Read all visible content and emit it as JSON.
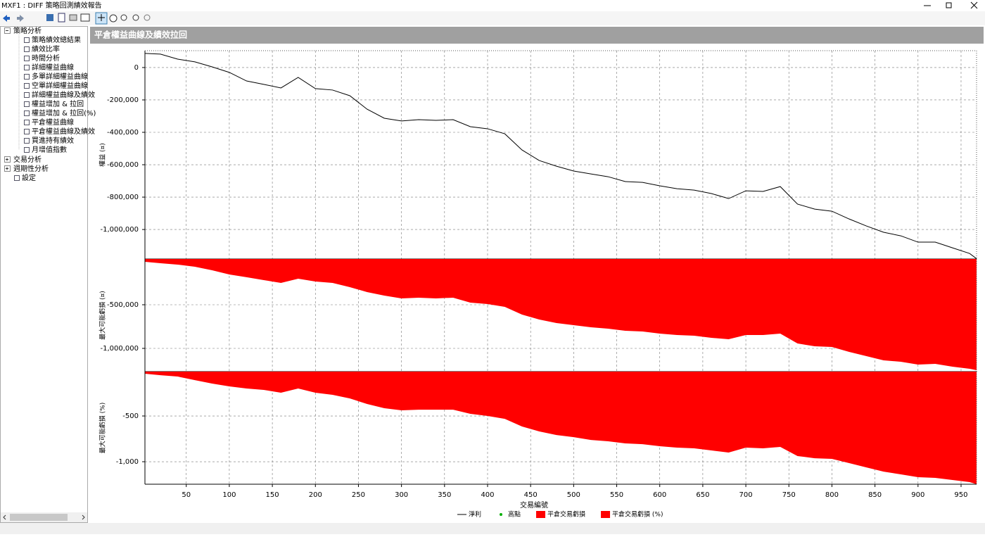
{
  "window": {
    "title": "MXF1 : DIFF 策略回測績效報告",
    "panel_title": "平倉權益曲線及績效拉回"
  },
  "tree": {
    "root": "策略分析",
    "children": [
      "策略績效總結果",
      "績效比率",
      "時間分析",
      "詳細權益曲線",
      "多單詳細權益曲線",
      "空單詳細權益曲線",
      "詳細權益曲線及績效",
      "權益增加 & 拉回",
      "權益增加 & 拉回(%)",
      "平倉權益曲線",
      "平倉權益曲線及績效",
      "買進持有績效",
      "月增值指數"
    ],
    "others": [
      "交易分析",
      "週期性分析",
      "設定"
    ]
  },
  "chart_data": [
    {
      "type": "line",
      "ylabel": "權益 (¤)",
      "x": [
        2,
        20,
        40,
        60,
        80,
        100,
        120,
        140,
        160,
        180,
        200,
        220,
        240,
        260,
        280,
        300,
        320,
        340,
        360,
        380,
        400,
        420,
        440,
        460,
        480,
        500,
        520,
        540,
        560,
        580,
        600,
        620,
        640,
        660,
        680,
        700,
        720,
        740,
        760,
        780,
        800,
        820,
        840,
        860,
        880,
        900,
        920,
        940,
        960,
        968
      ],
      "series": [
        {
          "name": "淨利",
          "color": "#000000",
          "values": [
            87000,
            83000,
            52000,
            35000,
            4000,
            -30000,
            -83000,
            -104000,
            -126000,
            -61000,
            -130000,
            -139000,
            -174000,
            -257000,
            -313000,
            -330000,
            -322000,
            -326000,
            -322000,
            -365000,
            -378000,
            -409000,
            -509000,
            -574000,
            -609000,
            -639000,
            -657000,
            -674000,
            -704000,
            -709000,
            -730000,
            -748000,
            -757000,
            -778000,
            -809000,
            -761000,
            -765000,
            -735000,
            -843000,
            -874000,
            -887000,
            -935000,
            -978000,
            -1017000,
            -1039000,
            -1078000,
            -1078000,
            -1113000,
            -1148000,
            -1180000
          ]
        },
        {
          "name": "高點",
          "color": "#00b000",
          "marker": "dot",
          "x": [],
          "values": []
        }
      ],
      "xlim": [
        2,
        968
      ],
      "ylim": [
        -1182000,
        104000
      ],
      "yticks": [
        0,
        {
          "value": -200000,
          "label": "-200,000"
        },
        {
          "value": -400000,
          "label": "-400,000"
        },
        {
          "value": -600000,
          "label": "-600,000"
        },
        {
          "value": -800000,
          "label": "-800,000"
        },
        {
          "value": -1000000,
          "label": "-1,000,000"
        }
      ],
      "grid": true
    },
    {
      "type": "area",
      "ylabel": "最大可能虧損 (¤)",
      "x": [
        2,
        20,
        40,
        60,
        80,
        100,
        120,
        140,
        160,
        180,
        200,
        220,
        240,
        260,
        280,
        300,
        320,
        340,
        360,
        380,
        400,
        420,
        440,
        460,
        480,
        500,
        520,
        540,
        560,
        580,
        600,
        620,
        640,
        660,
        680,
        700,
        720,
        740,
        760,
        780,
        800,
        820,
        840,
        860,
        880,
        900,
        920,
        940,
        960,
        968
      ],
      "series": [
        {
          "name": "平倉交易虧損",
          "color": "#ff0000",
          "values": [
            -8000,
            -24000,
            -40000,
            -65000,
            -105000,
            -153000,
            -185000,
            -218000,
            -250000,
            -202000,
            -234000,
            -250000,
            -298000,
            -355000,
            -395000,
            -427000,
            -419000,
            -427000,
            -419000,
            -476000,
            -492000,
            -524000,
            -613000,
            -669000,
            -710000,
            -734000,
            -758000,
            -774000,
            -798000,
            -806000,
            -831000,
            -847000,
            -855000,
            -879000,
            -895000,
            -847000,
            -847000,
            -831000,
            -944000,
            -976000,
            -984000,
            -1040000,
            -1089000,
            -1137000,
            -1153000,
            -1185000,
            -1177000,
            -1210000,
            -1234000,
            -1250000
          ]
        }
      ],
      "xlim": [
        2,
        968
      ],
      "ylim": [
        -1266000,
        24000
      ],
      "yticks": [
        {
          "value": -500000,
          "label": "-500,000"
        },
        {
          "value": -1000000,
          "label": "-1,000,000"
        }
      ],
      "grid": true
    },
    {
      "type": "area",
      "ylabel": "最大可能虧損 (%)",
      "xlabel": "交易編號",
      "x": [
        2,
        20,
        40,
        60,
        80,
        100,
        120,
        140,
        160,
        180,
        200,
        220,
        240,
        260,
        280,
        300,
        320,
        340,
        360,
        380,
        400,
        420,
        440,
        460,
        480,
        500,
        520,
        540,
        560,
        580,
        600,
        620,
        640,
        660,
        680,
        700,
        720,
        740,
        760,
        780,
        800,
        820,
        840,
        860,
        880,
        900,
        920,
        940,
        960,
        968
      ],
      "series": [
        {
          "name": "平倉交易虧損 (%)",
          "color": "#ff0000",
          "values": [
            -38,
            -54,
            -69,
            -108,
            -146,
            -177,
            -200,
            -215,
            -246,
            -200,
            -246,
            -269,
            -308,
            -369,
            -415,
            -438,
            -431,
            -431,
            -431,
            -477,
            -500,
            -531,
            -615,
            -669,
            -708,
            -731,
            -762,
            -777,
            -800,
            -808,
            -831,
            -846,
            -854,
            -877,
            -900,
            -846,
            -854,
            -838,
            -938,
            -962,
            -969,
            -1015,
            -1062,
            -1108,
            -1138,
            -1169,
            -1177,
            -1200,
            -1223,
            -1246
          ]
        }
      ],
      "xlim": [
        2,
        968
      ],
      "ylim": [
        -1246,
        -15
      ],
      "yticks": [
        -500,
        {
          "value": -1000,
          "label": "-1,000"
        }
      ],
      "xticks": [
        50,
        100,
        150,
        200,
        250,
        300,
        350,
        400,
        450,
        500,
        550,
        600,
        650,
        700,
        750,
        800,
        850,
        900,
        950
      ],
      "grid": true
    }
  ]
}
